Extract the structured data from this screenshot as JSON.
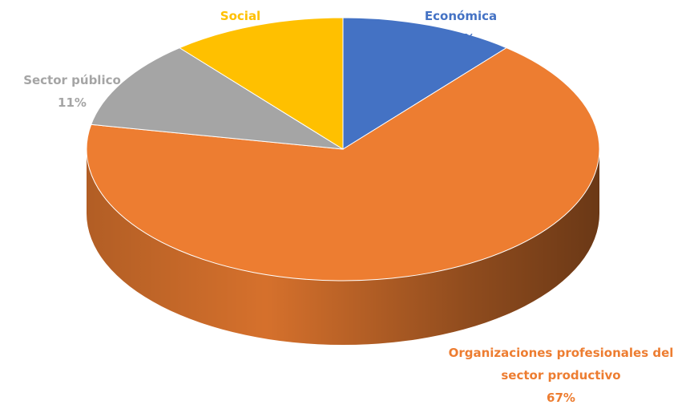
{
  "chart_data": {
    "type": "pie",
    "categories": [
      "Económica",
      "Organizaciones profesionales del sector productivo",
      "Sector público",
      "Social"
    ],
    "values": [
      11,
      67,
      11,
      11
    ],
    "value_labels": [
      "11%",
      "67%",
      "11%",
      "11%"
    ],
    "colors": [
      "#4472c4",
      "#ed7d31",
      "#a5a5a5",
      "#ffc000"
    ]
  }
}
